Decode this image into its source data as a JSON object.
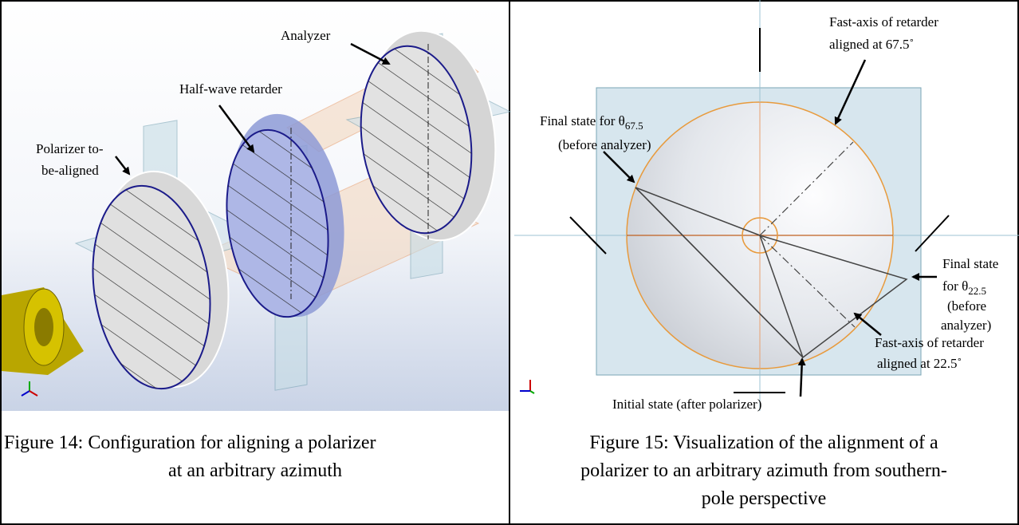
{
  "figure14": {
    "labels": {
      "analyzer": "Analyzer",
      "retarder": "Half-wave retarder",
      "polarizer": [
        "Polarizer to-",
        "be-aligned"
      ]
    },
    "caption": [
      "Figure 14:  Configuration for aligning a polarizer",
      "at an arbitrary azimuth"
    ]
  },
  "figure15": {
    "labels": {
      "final_67": {
        "text": "Final state for θ",
        "sub": "67.5",
        "line2": "(before analyzer)"
      },
      "fast_67": [
        "Fast-axis of retarder",
        "aligned at 67.5˚"
      ],
      "final_22": {
        "line1": "Final state",
        "text": "for θ",
        "sub": "22.5",
        "line3": "(before",
        "line4": "analyzer)"
      },
      "fast_22": [
        "Fast-axis of retarder",
        "aligned at 22.5˚"
      ],
      "initial": "Initial state (after polarizer)"
    },
    "caption": [
      "Figure 15:  Visualization of the alignment of a",
      "polarizer to an arbitrary azimuth from southern-",
      "pole perspective"
    ]
  }
}
